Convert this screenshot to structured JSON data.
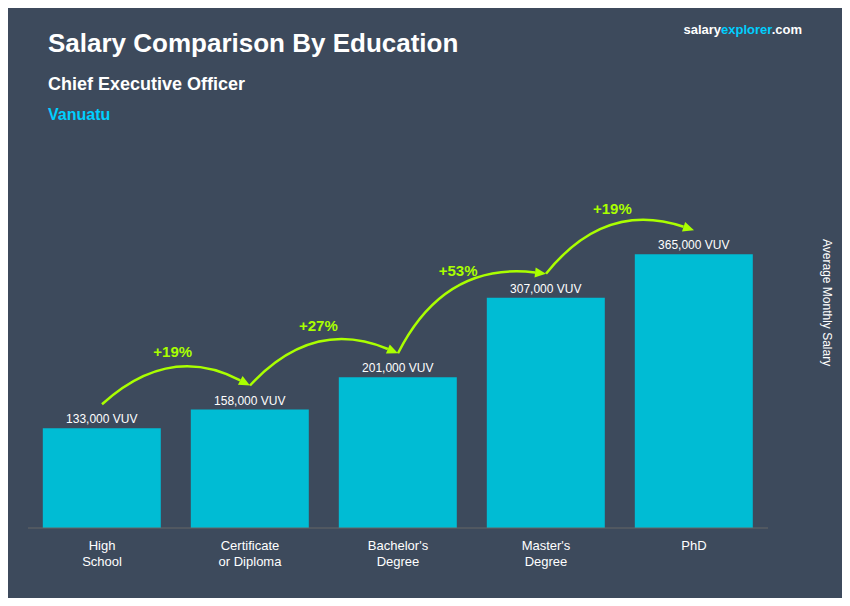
{
  "chart_data": {
    "type": "bar",
    "title": "Salary Comparison By Education",
    "subtitle": "Chief Executive Officer",
    "country": {
      "text": "Vanuatu",
      "color": "#00cfff"
    },
    "brand": [
      {
        "text": "salary",
        "color": "#ffffff"
      },
      {
        "text": "explorer",
        "color": "#00cfff"
      },
      {
        "text": ".com",
        "color": "#ffffff"
      }
    ],
    "y_label": "Average Monthly Salary",
    "categories": [
      "High\nSchool",
      "Certificate\nor Diploma",
      "Bachelor's\nDegree",
      "Master's\nDegree",
      "PhD"
    ],
    "values": [
      133000,
      158000,
      201000,
      307000,
      365000
    ],
    "value_labels": [
      "133,000 VUV",
      "158,000 VUV",
      "201,000 VUV",
      "307,000 VUV",
      "365,000 VUV"
    ],
    "data_labels": true,
    "color": "#00bcd4",
    "ylim": [
      0,
      480000
    ],
    "tick_labels": "x",
    "grid": false,
    "annotations": [
      {
        "text": "+19%",
        "from": "High\nSchool",
        "to": "Certificate\nor Diploma",
        "color": "#aaff00"
      },
      {
        "text": "+27%",
        "from": "Certificate\nor Diploma",
        "to": "Bachelor's\nDegree",
        "color": "#aaff00"
      },
      {
        "text": "+53%",
        "from": "Bachelor's\nDegree",
        "to": "Master's\nDegree",
        "color": "#aaff00"
      },
      {
        "text": "+19%",
        "from": "Master's\nDegree",
        "to": "PhD",
        "color": "#aaff00"
      }
    ]
  }
}
